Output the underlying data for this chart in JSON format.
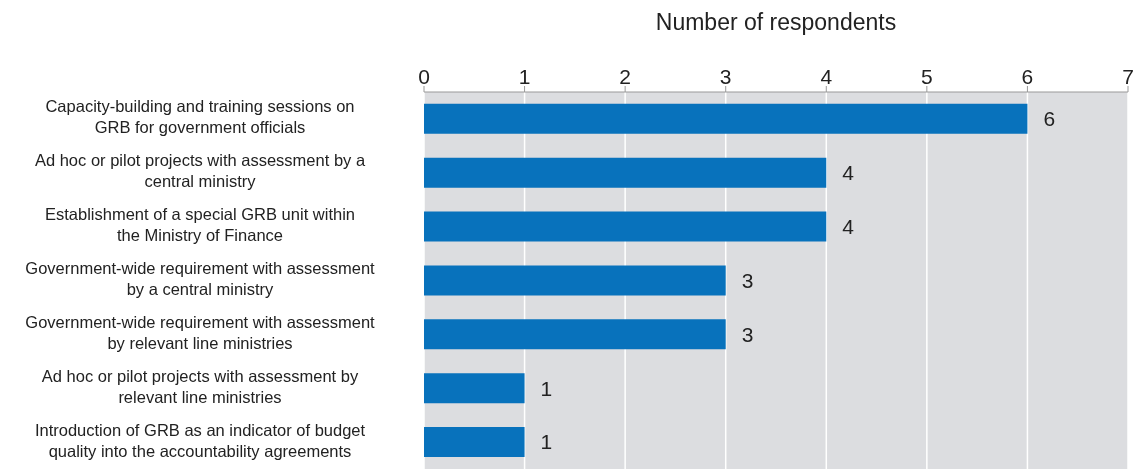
{
  "chart_data": {
    "type": "bar",
    "orientation": "horizontal",
    "xlabel": "Number of respondents",
    "categories": [
      "Capacity-building and training sessions on GRB for government officials",
      "Ad hoc or pilot projects with assessment by a central ministry",
      "Establishment of a special GRB unit within the Ministry of Finance",
      "Government-wide requirement with assessment by a central ministry",
      "Government-wide requirement with assessment by relevant line ministries",
      "Ad hoc or pilot projects with assessment by relevant line ministries",
      "Introduction of GRB as an indicator of budget quality into the accountability agreements"
    ],
    "values": [
      6,
      4,
      4,
      3,
      3,
      1,
      1
    ],
    "color": "#0872bc",
    "xlim": [
      0,
      7
    ],
    "xticks": [
      0,
      1,
      2,
      3,
      4,
      5,
      6,
      7
    ],
    "grid": "x",
    "data_labels": true
  }
}
